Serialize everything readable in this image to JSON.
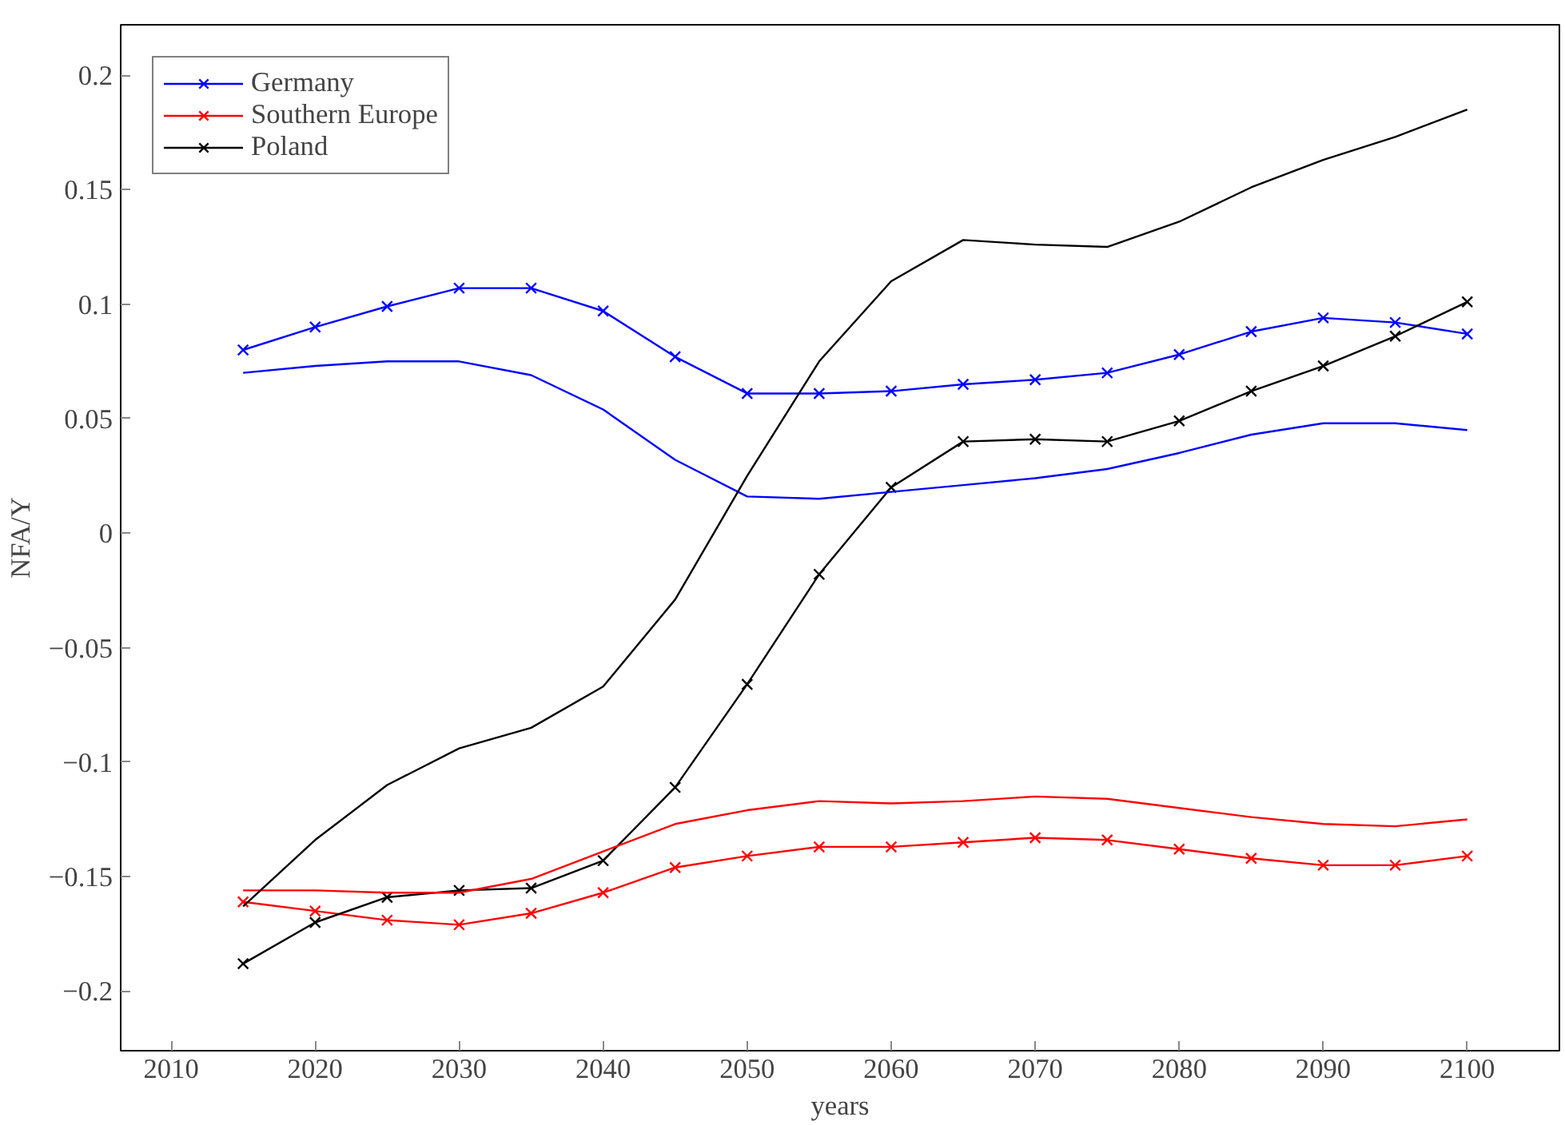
{
  "chart_data": {
    "type": "line",
    "xlabel": "years",
    "ylabel": "NFA/Y",
    "x": [
      2015,
      2020,
      2025,
      2030,
      2035,
      2040,
      2045,
      2050,
      2055,
      2060,
      2065,
      2070,
      2075,
      2080,
      2085,
      2090,
      2095,
      2100
    ],
    "xlim": [
      2006.5,
      2106.4
    ],
    "xticks": [
      2010,
      2020,
      2030,
      2040,
      2050,
      2060,
      2070,
      2080,
      2090,
      2100
    ],
    "ylim": [
      -0.226,
      0.222
    ],
    "yticks": [
      {
        "value": -0.2,
        "label": "−0.2"
      },
      {
        "value": -0.15,
        "label": "−0.15"
      },
      {
        "value": -0.1,
        "label": "−0.1"
      },
      {
        "value": -0.05,
        "label": "−0.05"
      },
      0,
      0.05,
      0.1,
      0.15,
      0.2
    ],
    "grid": false,
    "legend": "top left",
    "line_style": "solid",
    "series": [
      {
        "name": "Germany",
        "color": "#0000ff",
        "marker": "cross",
        "values": [
          0.08,
          0.09,
          0.099,
          0.107,
          0.107,
          0.097,
          0.077,
          0.061,
          0.061,
          0.062,
          0.065,
          0.067,
          0.07,
          0.078,
          0.088,
          0.094,
          0.092,
          0.087
        ]
      },
      {
        "name": "Southern Europe",
        "color": "#ff0000",
        "marker": "cross",
        "values": [
          -0.161,
          -0.165,
          -0.169,
          -0.171,
          -0.166,
          -0.157,
          -0.146,
          -0.141,
          -0.137,
          -0.137,
          -0.135,
          -0.133,
          -0.134,
          -0.138,
          -0.142,
          -0.145,
          -0.145,
          -0.141
        ]
      },
      {
        "name": "Poland",
        "color": "#000000",
        "marker": "cross",
        "values": [
          -0.188,
          -0.17,
          -0.159,
          -0.156,
          -0.155,
          -0.143,
          -0.111,
          -0.066,
          -0.018,
          0.02,
          0.04,
          0.041,
          0.04,
          0.049,
          0.062,
          0.073,
          0.086,
          0.101
        ]
      },
      {
        "color": "#0000ff",
        "marker": "none",
        "values": [
          0.07,
          0.073,
          0.075,
          0.075,
          0.069,
          0.054,
          0.032,
          0.016,
          0.015,
          0.018,
          0.021,
          0.024,
          0.028,
          0.035,
          0.043,
          0.048,
          0.048,
          0.045
        ]
      },
      {
        "color": "#ff0000",
        "marker": "none",
        "values": [
          -0.156,
          -0.156,
          -0.157,
          -0.157,
          -0.151,
          -0.139,
          -0.127,
          -0.121,
          -0.117,
          -0.118,
          -0.117,
          -0.115,
          -0.116,
          -0.12,
          -0.124,
          -0.127,
          -0.128,
          -0.125
        ]
      },
      {
        "color": "#000000",
        "marker": "none",
        "values": [
          -0.163,
          -0.134,
          -0.11,
          -0.094,
          -0.085,
          -0.067,
          -0.029,
          0.025,
          0.075,
          0.11,
          0.128,
          0.126,
          0.125,
          0.136,
          0.151,
          0.163,
          0.173,
          0.185
        ]
      }
    ]
  }
}
